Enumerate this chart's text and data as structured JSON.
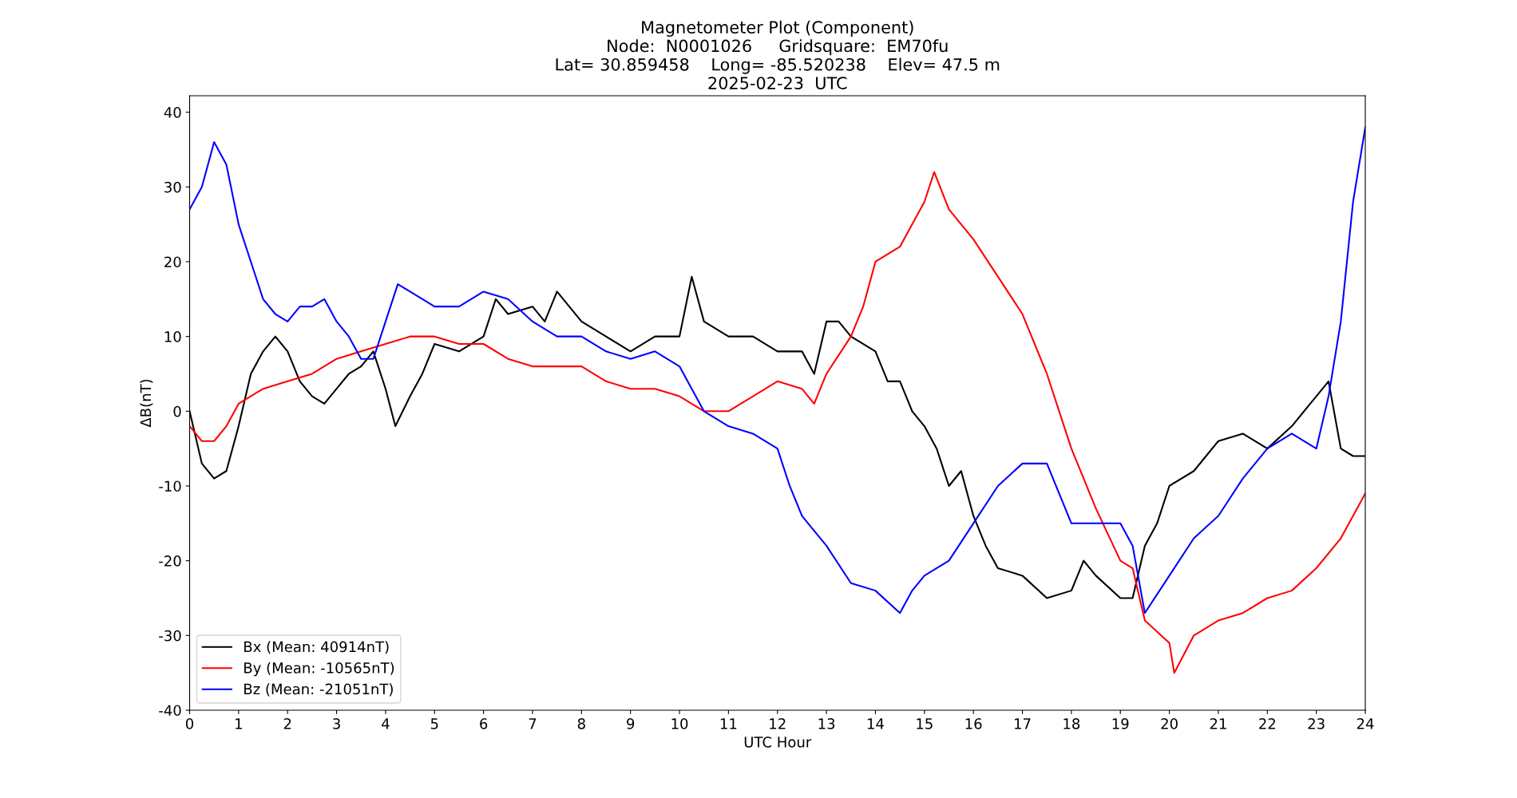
{
  "chart_data": {
    "type": "line",
    "title": "Magnetometer Plot (Component)\nNode:  N0001026     Gridsquare:  EM70fu\nLat= 30.859458    Long= -85.520238    Elev= 47.5 m\n2025-02-23  UTC",
    "xlabel": "UTC Hour",
    "ylabel": "ΔB(nT)",
    "xlim": [
      0,
      24
    ],
    "xticks": [
      0,
      1,
      2,
      3,
      4,
      5,
      6,
      7,
      8,
      9,
      10,
      11,
      12,
      13,
      14,
      15,
      16,
      17,
      18,
      19,
      20,
      21,
      22,
      23,
      24
    ],
    "ylim": [
      -40,
      42.2
    ],
    "yticks": [
      -40,
      -30,
      -20,
      -10,
      0,
      10,
      20,
      30,
      40
    ],
    "grid": false,
    "legend": "bottom left",
    "line_style": "solid",
    "marker": "none",
    "series": [
      {
        "name": "Bx (Mean: 40914nT)",
        "color": "#000000",
        "x": [
          0,
          0.25,
          0.5,
          0.75,
          1,
          1.25,
          1.5,
          1.75,
          2,
          2.25,
          2.5,
          2.75,
          3,
          3.25,
          3.5,
          3.75,
          4,
          4.2,
          4.5,
          4.75,
          5,
          5.5,
          6,
          6.25,
          6.5,
          7,
          7.25,
          7.5,
          7.75,
          8,
          8.5,
          9,
          9.5,
          10,
          10.25,
          10.5,
          11,
          11.5,
          12,
          12.5,
          12.75,
          13,
          13.25,
          13.5,
          14,
          14.25,
          14.5,
          14.75,
          15,
          15.25,
          15.5,
          15.75,
          16,
          16.25,
          16.5,
          17,
          17.5,
          18,
          18.25,
          18.5,
          19,
          19.25,
          19.5,
          19.75,
          20,
          20.5,
          21,
          21.5,
          22,
          22.5,
          23,
          23.25,
          23.5,
          23.75,
          24
        ],
        "values": [
          0,
          -7,
          -9,
          -8,
          -2,
          5,
          8,
          10,
          8,
          4,
          2,
          1,
          3,
          5,
          6,
          8,
          3,
          -2,
          2,
          5,
          9,
          8,
          10,
          15,
          13,
          14,
          12,
          16,
          14,
          12,
          10,
          8,
          10,
          10,
          18,
          12,
          10,
          10,
          8,
          8,
          5,
          12,
          12,
          10,
          8,
          4,
          4,
          0,
          -2,
          -5,
          -10,
          -8,
          -14,
          -18,
          -21,
          -22,
          -25,
          -24,
          -20,
          -22,
          -25,
          -25,
          -18,
          -15,
          -10,
          -8,
          -4,
          -3,
          -5,
          -2,
          2,
          4,
          -5,
          -6,
          -6
        ]
      },
      {
        "name": "By (Mean: -10565nT)",
        "color": "#ff0000",
        "x": [
          0,
          0.25,
          0.5,
          0.75,
          1,
          1.5,
          2,
          2.5,
          3,
          3.5,
          4,
          4.5,
          5,
          5.5,
          6,
          6.5,
          7,
          7.5,
          8,
          8.5,
          9,
          9.5,
          10,
          10.5,
          11,
          11.5,
          12,
          12.5,
          12.75,
          13,
          13.5,
          13.75,
          14,
          14.5,
          14.75,
          15,
          15.2,
          15.5,
          16,
          16.5,
          17,
          17.5,
          18,
          18.5,
          19,
          19.25,
          19.5,
          20,
          20.1,
          20.5,
          21,
          21.5,
          22,
          22.5,
          23,
          23.5,
          24
        ],
        "values": [
          -2,
          -4,
          -4,
          -2,
          1,
          3,
          4,
          5,
          7,
          8,
          9,
          10,
          10,
          9,
          9,
          7,
          6,
          6,
          6,
          4,
          3,
          3,
          2,
          0,
          0,
          2,
          4,
          3,
          1,
          5,
          10,
          14,
          20,
          22,
          25,
          28,
          32,
          27,
          23,
          18,
          13,
          5,
          -5,
          -13,
          -20,
          -21,
          -28,
          -31,
          -35,
          -30,
          -28,
          -27,
          -25,
          -24,
          -21,
          -17,
          -11
        ]
      },
      {
        "name": "Bz (Mean: -21051nT)",
        "color": "#0000ff",
        "x": [
          0,
          0.25,
          0.5,
          0.75,
          1,
          1.25,
          1.5,
          1.75,
          2,
          2.25,
          2.5,
          2.75,
          3,
          3.25,
          3.5,
          3.75,
          4,
          4.25,
          4.5,
          5,
          5.5,
          6,
          6.5,
          7,
          7.5,
          8,
          8.5,
          9,
          9.5,
          10,
          10.25,
          10.5,
          11,
          11.5,
          12,
          12.25,
          12.5,
          13,
          13.5,
          14,
          14.5,
          14.75,
          15,
          15.5,
          16,
          16.5,
          17,
          17.5,
          18,
          18.5,
          19,
          19.25,
          19.5,
          20,
          20.5,
          21,
          21.5,
          22,
          22.5,
          23,
          23.25,
          23.5,
          23.75,
          24
        ],
        "values": [
          27,
          30,
          36,
          33,
          25,
          20,
          15,
          13,
          12,
          14,
          14,
          15,
          12,
          10,
          7,
          7,
          12,
          17,
          16,
          14,
          14,
          16,
          15,
          12,
          10,
          10,
          8,
          7,
          8,
          6,
          3,
          0,
          -2,
          -3,
          -5,
          -10,
          -14,
          -18,
          -23,
          -24,
          -27,
          -24,
          -22,
          -20,
          -15,
          -10,
          -7,
          -7,
          -15,
          -15,
          -15,
          -18,
          -27,
          -22,
          -17,
          -14,
          -9,
          -5,
          -3,
          -5,
          2,
          12,
          28,
          38
        ]
      }
    ]
  }
}
